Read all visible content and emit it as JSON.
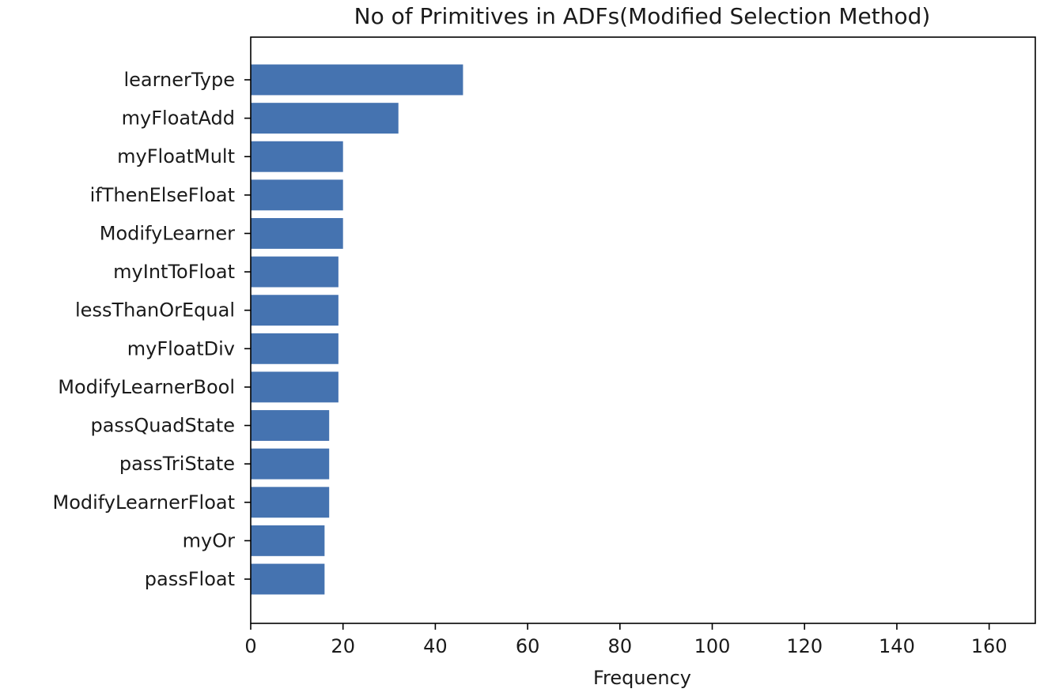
{
  "chart_data": {
    "type": "bar",
    "orientation": "horizontal",
    "title": "No of Primitives in ADFs(Modified Selection Method)",
    "xlabel": "Frequency",
    "ylabel": "",
    "categories": [
      "learnerType",
      "myFloatAdd",
      "myFloatMult",
      "ifThenElseFloat",
      "ModifyLearner",
      "myIntToFloat",
      "lessThanOrEqual",
      "myFloatDiv",
      "ModifyLearnerBool",
      "passQuadState",
      "passTriState",
      "ModifyLearnerFloat",
      "myOr",
      "passFloat"
    ],
    "values": [
      46,
      32,
      20,
      20,
      20,
      19,
      19,
      19,
      19,
      17,
      17,
      17,
      16,
      16
    ],
    "xlim": [
      0,
      170
    ],
    "xticks": [
      0,
      20,
      40,
      60,
      80,
      100,
      120,
      140,
      160
    ],
    "xtick_labels": [
      "0",
      "20",
      "40",
      "60",
      "80",
      "100",
      "120",
      "140",
      "160"
    ],
    "bar_color": "#4573b0",
    "grid": false,
    "legend": "none"
  }
}
